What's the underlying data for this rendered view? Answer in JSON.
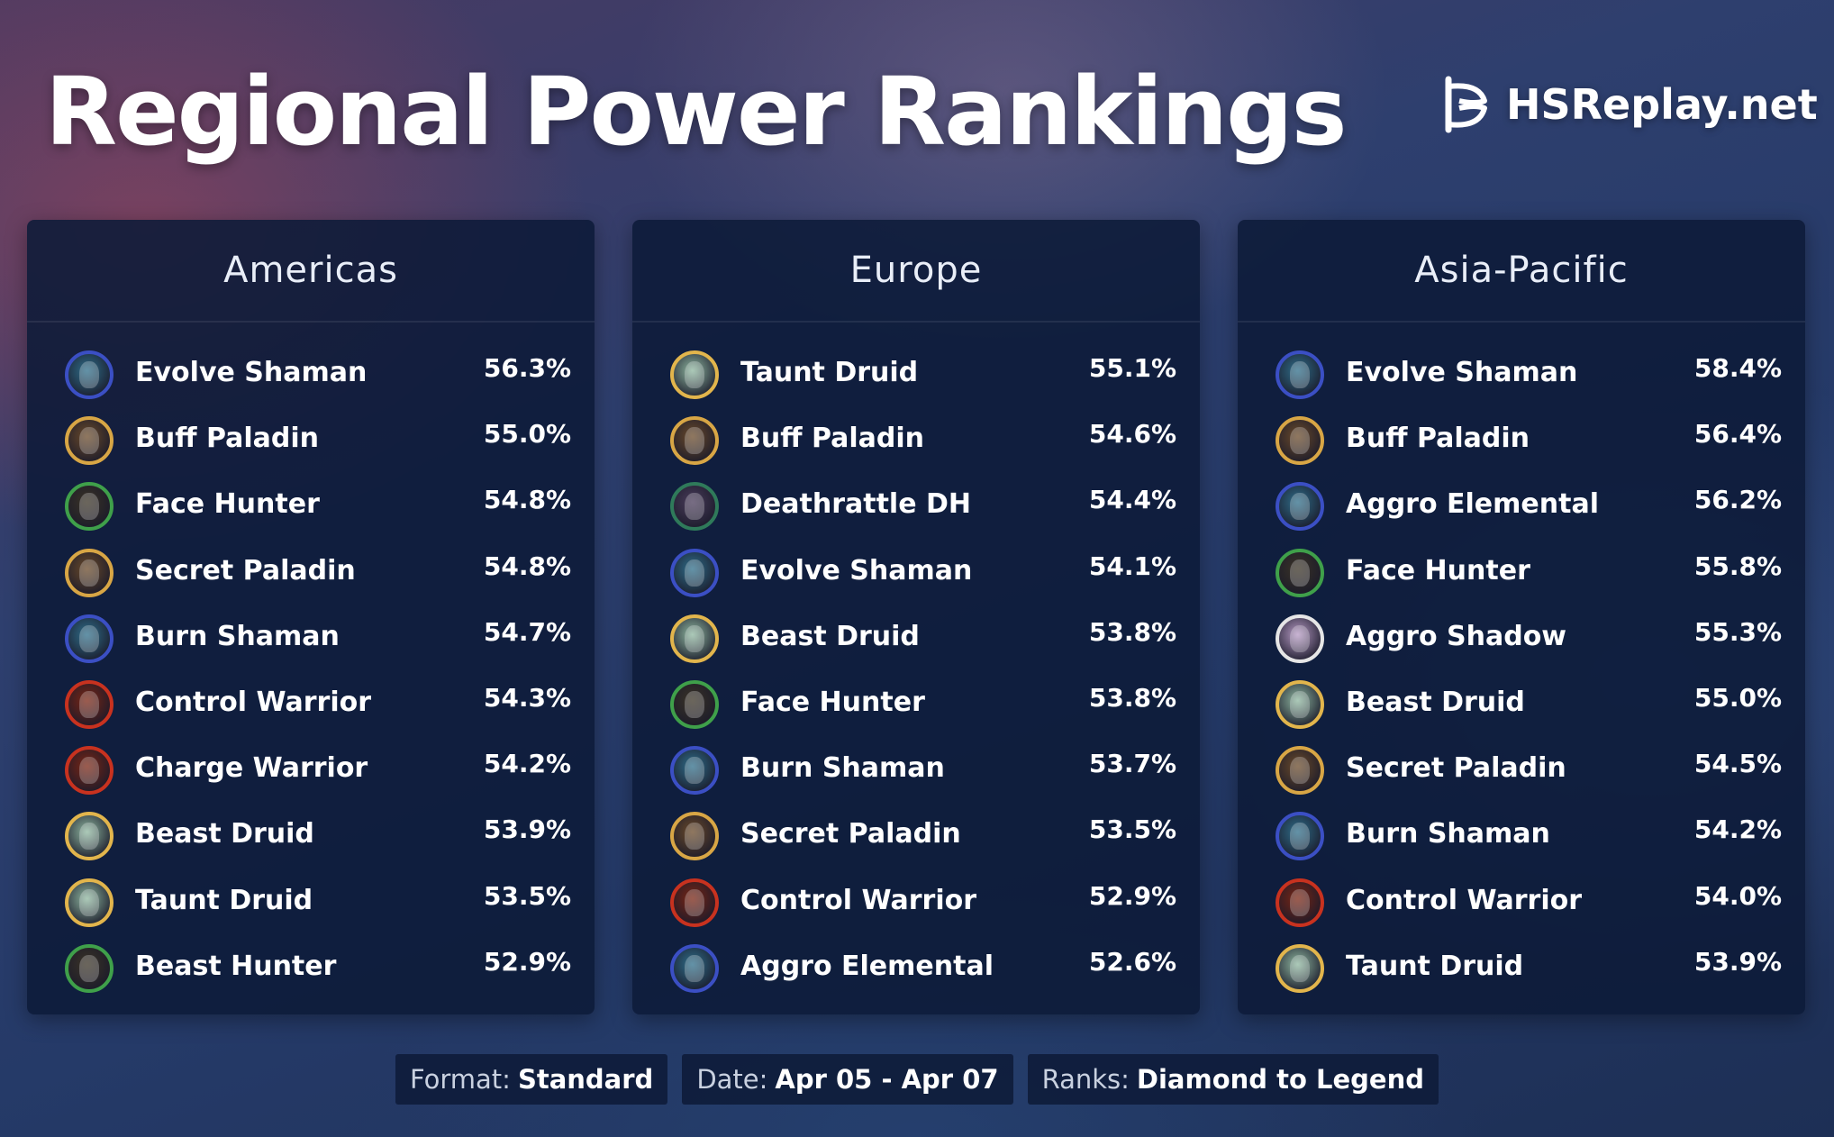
{
  "title": "Regional Power Rankings",
  "brand": {
    "name": "HSReplay.net",
    "icon": "hsreplay-logo-icon"
  },
  "class_colors": {
    "shaman": {
      "ring": "#3b4fc4",
      "fill": "#2f6e8a"
    },
    "paladin": {
      "ring": "#d8a645",
      "fill": "#6a4a2a"
    },
    "hunter": {
      "ring": "#3fa04a",
      "fill": "#3a3326"
    },
    "warrior": {
      "ring": "#c8321f",
      "fill": "#7a2514"
    },
    "druid": {
      "ring": "#e2b54c",
      "fill": "#8fb7a0"
    },
    "demonhunter": {
      "ring": "#2f7a5a",
      "fill": "#4a3c5a"
    },
    "priest": {
      "ring": "#e6e6e6",
      "fill": "#b69ac4"
    }
  },
  "regions": [
    {
      "name": "Americas",
      "decks": [
        {
          "name": "Evolve Shaman",
          "winrate": "56.3%",
          "class": "shaman"
        },
        {
          "name": "Buff Paladin",
          "winrate": "55.0%",
          "class": "paladin"
        },
        {
          "name": "Face Hunter",
          "winrate": "54.8%",
          "class": "hunter"
        },
        {
          "name": "Secret Paladin",
          "winrate": "54.8%",
          "class": "paladin"
        },
        {
          "name": "Burn Shaman",
          "winrate": "54.7%",
          "class": "shaman"
        },
        {
          "name": "Control Warrior",
          "winrate": "54.3%",
          "class": "warrior"
        },
        {
          "name": "Charge Warrior",
          "winrate": "54.2%",
          "class": "warrior"
        },
        {
          "name": "Beast Druid",
          "winrate": "53.9%",
          "class": "druid"
        },
        {
          "name": "Taunt Druid",
          "winrate": "53.5%",
          "class": "druid"
        },
        {
          "name": "Beast Hunter",
          "winrate": "52.9%",
          "class": "hunter"
        }
      ]
    },
    {
      "name": "Europe",
      "decks": [
        {
          "name": "Taunt Druid",
          "winrate": "55.1%",
          "class": "druid"
        },
        {
          "name": "Buff Paladin",
          "winrate": "54.6%",
          "class": "paladin"
        },
        {
          "name": "Deathrattle DH",
          "winrate": "54.4%",
          "class": "demonhunter"
        },
        {
          "name": "Evolve Shaman",
          "winrate": "54.1%",
          "class": "shaman"
        },
        {
          "name": "Beast Druid",
          "winrate": "53.8%",
          "class": "druid"
        },
        {
          "name": "Face Hunter",
          "winrate": "53.8%",
          "class": "hunter"
        },
        {
          "name": "Burn Shaman",
          "winrate": "53.7%",
          "class": "shaman"
        },
        {
          "name": "Secret Paladin",
          "winrate": "53.5%",
          "class": "paladin"
        },
        {
          "name": "Control Warrior",
          "winrate": "52.9%",
          "class": "warrior"
        },
        {
          "name": "Aggro Elemental",
          "winrate": "52.6%",
          "class": "shaman"
        }
      ]
    },
    {
      "name": "Asia-Pacific",
      "decks": [
        {
          "name": "Evolve Shaman",
          "winrate": "58.4%",
          "class": "shaman"
        },
        {
          "name": "Buff Paladin",
          "winrate": "56.4%",
          "class": "paladin"
        },
        {
          "name": "Aggro Elemental",
          "winrate": "56.2%",
          "class": "shaman"
        },
        {
          "name": "Face Hunter",
          "winrate": "55.8%",
          "class": "hunter"
        },
        {
          "name": "Aggro Shadow",
          "winrate": "55.3%",
          "class": "priest"
        },
        {
          "name": "Beast Druid",
          "winrate": "55.0%",
          "class": "druid"
        },
        {
          "name": "Secret Paladin",
          "winrate": "54.5%",
          "class": "paladin"
        },
        {
          "name": "Burn Shaman",
          "winrate": "54.2%",
          "class": "shaman"
        },
        {
          "name": "Control Warrior",
          "winrate": "54.0%",
          "class": "warrior"
        },
        {
          "name": "Taunt Druid",
          "winrate": "53.9%",
          "class": "druid"
        }
      ]
    }
  ],
  "footer": {
    "format_label": "Format:",
    "format_value": "Standard",
    "date_label": "Date:",
    "date_value": "Apr 05 - Apr 07",
    "ranks_label": "Ranks:",
    "ranks_value": "Diamond to Legend"
  }
}
